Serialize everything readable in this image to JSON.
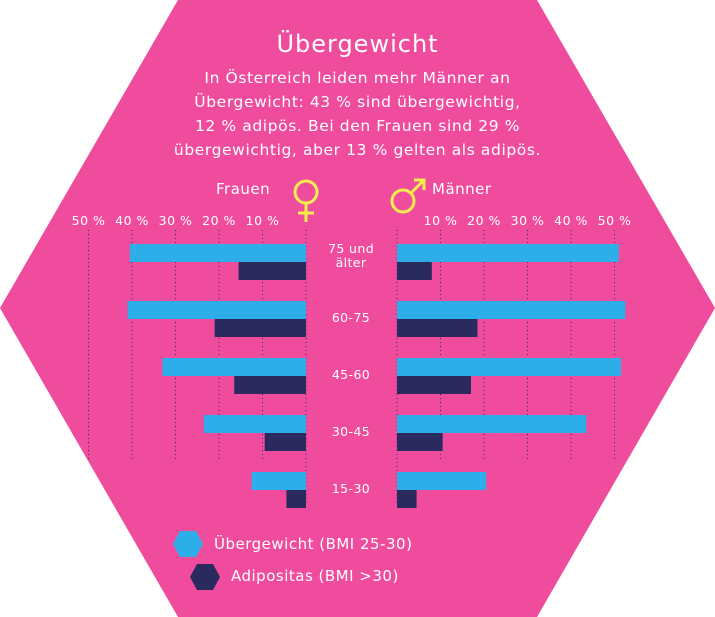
{
  "title": "Übergewicht",
  "intro_lines": [
    "In Österreich leiden mehr Männer an",
    "Übergewicht: 43 % sind übergewichtig,",
    "12 % adipös. Bei den Frauen sind 29 %",
    "übergewichtig, aber 13 % gelten als adipös."
  ],
  "labels": {
    "women": "Frauen",
    "men": "Männer"
  },
  "icons": {
    "women": "female-symbol-icon",
    "men": "male-symbol-icon"
  },
  "colors": {
    "background": "#f04c9d",
    "overweight": "#2eaee8",
    "obesity": "#2a2a5e",
    "women_symbol": "#f5ec4e",
    "men_symbol": "#f5ec4e",
    "text": "#ffffff"
  },
  "legend": {
    "overweight": "Übergewicht (BMI 25-30)",
    "obesity": "Adipositas (BMI >30)"
  },
  "chart_data": {
    "type": "bar",
    "orientation": "horizontal-butterfly",
    "categories": [
      "75 und älter",
      "60-75",
      "45-60",
      "30-45",
      "15-30"
    ],
    "axis_ticks": [
      "10 %",
      "20 %",
      "30 %",
      "40 %",
      "50 %"
    ],
    "xlim": [
      0,
      50
    ],
    "grid": true,
    "legend_position": "bottom",
    "women": {
      "series": [
        {
          "name": "Übergewicht (BMI 25-30)",
          "values": [
            40.5,
            41,
            33,
            23.5,
            12.5
          ]
        },
        {
          "name": "Adipositas (BMI >30)",
          "values": [
            15.5,
            21,
            16.5,
            9.5,
            4.5
          ]
        }
      ]
    },
    "men": {
      "series": [
        {
          "name": "Übergewicht (BMI 25-30)",
          "values": [
            51,
            52.5,
            51.5,
            43.5,
            20.5
          ]
        },
        {
          "name": "Adipositas (BMI >30)",
          "values": [
            8,
            18.5,
            17,
            10.5,
            4.5
          ]
        }
      ]
    }
  }
}
